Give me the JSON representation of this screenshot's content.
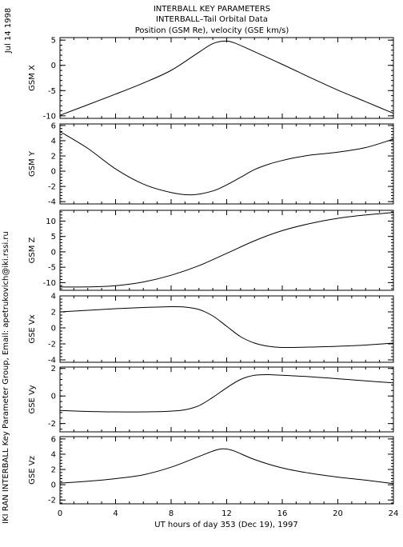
{
  "header": {
    "date": "Jul 14 1998",
    "title_lines": [
      "INTERBALL KEY PARAMETERS",
      "INTERBALL–Tail Orbital Data",
      "Position (GSM Re), velocity (GSE km/s)"
    ]
  },
  "footer": {
    "credit": "IKI RAN INTERBALL Key Parameter Group, Email: apetrukovich@iki.rssi.ru"
  },
  "chart_data": {
    "type": "line",
    "x": {
      "label": "UT hours of day 353 (Dec 19), 1997",
      "range": [
        0,
        24
      ],
      "ticks": [
        0,
        4,
        8,
        12,
        16,
        20,
        24
      ],
      "tick_labels": [
        "0",
        "4",
        "8",
        "12",
        "16",
        "20",
        "24"
      ]
    },
    "panels": [
      {
        "ylabel": "GSM X",
        "ylim": [
          -10.5,
          5.5
        ],
        "yticks": [
          -10,
          -5,
          0,
          5
        ],
        "ytick_labels": [
          "-10",
          "-5",
          "0",
          "5"
        ],
        "points": [
          [
            0,
            -9.9
          ],
          [
            2,
            -7.8
          ],
          [
            4,
            -5.7
          ],
          [
            6,
            -3.5
          ],
          [
            8,
            -1.0
          ],
          [
            10,
            2.6
          ],
          [
            11,
            4.3
          ],
          [
            11.8,
            4.8
          ],
          [
            12.5,
            4.5
          ],
          [
            14,
            2.7
          ],
          [
            16,
            0.2
          ],
          [
            18,
            -2.4
          ],
          [
            20,
            -4.9
          ],
          [
            22,
            -7.2
          ],
          [
            24,
            -9.5
          ]
        ]
      },
      {
        "ylabel": "GSM Y",
        "ylim": [
          -4.3,
          6.2
        ],
        "yticks": [
          -4,
          -2,
          0,
          2,
          4,
          6
        ],
        "ytick_labels": [
          "-4",
          "-2",
          "0",
          "2",
          "4",
          "6"
        ],
        "points": [
          [
            0,
            5.2
          ],
          [
            2,
            3.0
          ],
          [
            4,
            0.3
          ],
          [
            6,
            -1.7
          ],
          [
            8,
            -2.8
          ],
          [
            9.5,
            -3.1
          ],
          [
            11,
            -2.6
          ],
          [
            12,
            -1.8
          ],
          [
            13,
            -0.8
          ],
          [
            14,
            0.2
          ],
          [
            15,
            0.9
          ],
          [
            16,
            1.4
          ],
          [
            17,
            1.8
          ],
          [
            18,
            2.1
          ],
          [
            20,
            2.5
          ],
          [
            22,
            3.1
          ],
          [
            24,
            4.2
          ]
        ]
      },
      {
        "ylabel": "GSM Z",
        "ylim": [
          -12.5,
          13.5
        ],
        "yticks": [
          -10,
          -5,
          0,
          5,
          10
        ],
        "ytick_labels": [
          "-10",
          "-5",
          "0",
          "5",
          "10"
        ],
        "points": [
          [
            0,
            -11.4
          ],
          [
            2,
            -11.4
          ],
          [
            4,
            -11.0
          ],
          [
            6,
            -9.8
          ],
          [
            8,
            -7.6
          ],
          [
            10,
            -4.5
          ],
          [
            12,
            -0.5
          ],
          [
            14,
            3.6
          ],
          [
            16,
            6.9
          ],
          [
            18,
            9.2
          ],
          [
            20,
            10.9
          ],
          [
            22,
            12.0
          ],
          [
            24,
            12.8
          ]
        ]
      },
      {
        "ylabel": "GSE Vx",
        "ylim": [
          -4.3,
          4.0
        ],
        "yticks": [
          -4,
          -2,
          0,
          2,
          4
        ],
        "ytick_labels": [
          "-4",
          "-2",
          "0",
          "2",
          "4"
        ],
        "points": [
          [
            0,
            2.0
          ],
          [
            2,
            2.2
          ],
          [
            4,
            2.4
          ],
          [
            6,
            2.55
          ],
          [
            8,
            2.65
          ],
          [
            9,
            2.6
          ],
          [
            10,
            2.3
          ],
          [
            11,
            1.5
          ],
          [
            12,
            0.2
          ],
          [
            13,
            -1.1
          ],
          [
            14,
            -1.9
          ],
          [
            15,
            -2.3
          ],
          [
            16,
            -2.45
          ],
          [
            18,
            -2.4
          ],
          [
            20,
            -2.3
          ],
          [
            22,
            -2.15
          ],
          [
            24,
            -1.9
          ]
        ]
      },
      {
        "ylabel": "GSE Vy",
        "ylim": [
          -2.6,
          2.1
        ],
        "yticks": [
          -2,
          0,
          2
        ],
        "ytick_labels": [
          "-2",
          "0",
          "2"
        ],
        "points": [
          [
            0,
            -1.05
          ],
          [
            2,
            -1.12
          ],
          [
            4,
            -1.15
          ],
          [
            6,
            -1.15
          ],
          [
            8,
            -1.1
          ],
          [
            9,
            -1.0
          ],
          [
            10,
            -0.7
          ],
          [
            11,
            -0.1
          ],
          [
            12,
            0.6
          ],
          [
            13,
            1.2
          ],
          [
            14,
            1.5
          ],
          [
            15,
            1.55
          ],
          [
            16,
            1.5
          ],
          [
            18,
            1.4
          ],
          [
            20,
            1.25
          ],
          [
            22,
            1.1
          ],
          [
            24,
            0.95
          ]
        ]
      },
      {
        "ylabel": "GSE Vz",
        "ylim": [
          -2.5,
          6.3
        ],
        "yticks": [
          -2,
          0,
          2,
          4,
          6
        ],
        "ytick_labels": [
          "-2",
          "0",
          "2",
          "4",
          "6"
        ],
        "points": [
          [
            0,
            0.2
          ],
          [
            2,
            0.45
          ],
          [
            4,
            0.8
          ],
          [
            6,
            1.3
          ],
          [
            8,
            2.3
          ],
          [
            10,
            3.7
          ],
          [
            11,
            4.4
          ],
          [
            11.7,
            4.7
          ],
          [
            12.5,
            4.45
          ],
          [
            14,
            3.3
          ],
          [
            16,
            2.2
          ],
          [
            18,
            1.5
          ],
          [
            20,
            1.0
          ],
          [
            22,
            0.6
          ],
          [
            24,
            0.15
          ]
        ]
      }
    ]
  }
}
